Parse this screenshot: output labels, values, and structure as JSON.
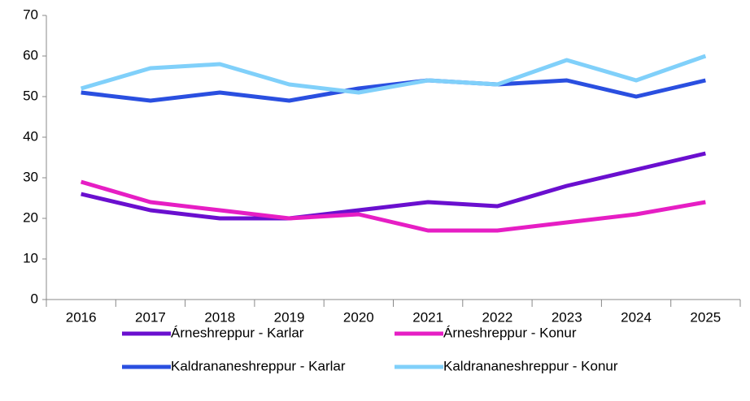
{
  "chart_data": {
    "type": "line",
    "categories": [
      "2016",
      "2017",
      "2018",
      "2019",
      "2020",
      "2021",
      "2022",
      "2023",
      "2024",
      "2025"
    ],
    "series": [
      {
        "name": "Árneshreppur - Karlar",
        "color": "#6a0fcf",
        "values": [
          26,
          22,
          20,
          20,
          22,
          24,
          23,
          28,
          32,
          36
        ]
      },
      {
        "name": "Árneshreppur - Konur",
        "color": "#e61ec4",
        "values": [
          29,
          24,
          22,
          20,
          21,
          17,
          17,
          19,
          21,
          24
        ]
      },
      {
        "name": "Kaldrananeshreppur - Karlar",
        "color": "#2a4fe0",
        "values": [
          51,
          49,
          51,
          49,
          52,
          54,
          53,
          54,
          50,
          54
        ]
      },
      {
        "name": "Kaldrananeshreppur - Konur",
        "color": "#80d0fa",
        "values": [
          52,
          57,
          58,
          53,
          51,
          54,
          53,
          59,
          54,
          60
        ]
      }
    ],
    "ylim": [
      0,
      70
    ],
    "yticks": [
      0,
      10,
      20,
      30,
      40,
      50,
      60,
      70
    ],
    "grid": false
  }
}
